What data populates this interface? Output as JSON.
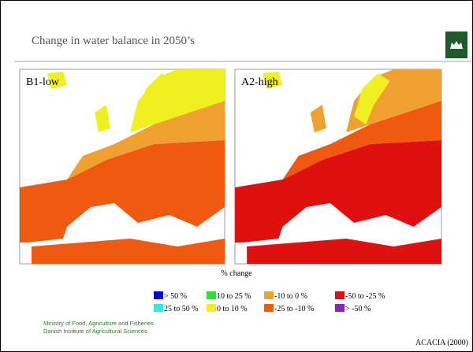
{
  "header": {
    "title": "Change in water balance in 2050’s"
  },
  "maps": [
    {
      "label": "B1-low"
    },
    {
      "label": "A2-high"
    }
  ],
  "legend": {
    "caption": "% change",
    "items": [
      {
        "label": "> 50 %",
        "color": "#0000e0"
      },
      {
        "label": "25 to 50 %",
        "color": "#30e8e8"
      },
      {
        "label": "10 to 25 %",
        "color": "#30e030"
      },
      {
        "label": "0 to 10 %",
        "color": "#f0f020"
      },
      {
        "label": "-10 to 0 %",
        "color": "#f0a030"
      },
      {
        "label": "-25 to -10 %",
        "color": "#f05a10"
      },
      {
        "label": "-50 to -25 %",
        "color": "#e01010"
      },
      {
        "label": "> -50 %",
        "color": "#9020c0"
      }
    ]
  },
  "footer": {
    "lines": [
      "Ministry of Food, Agriculture and Fisheries",
      "Danish Institute of Agricultural Sciences"
    ],
    "source": "ACACIA (2000)"
  }
}
